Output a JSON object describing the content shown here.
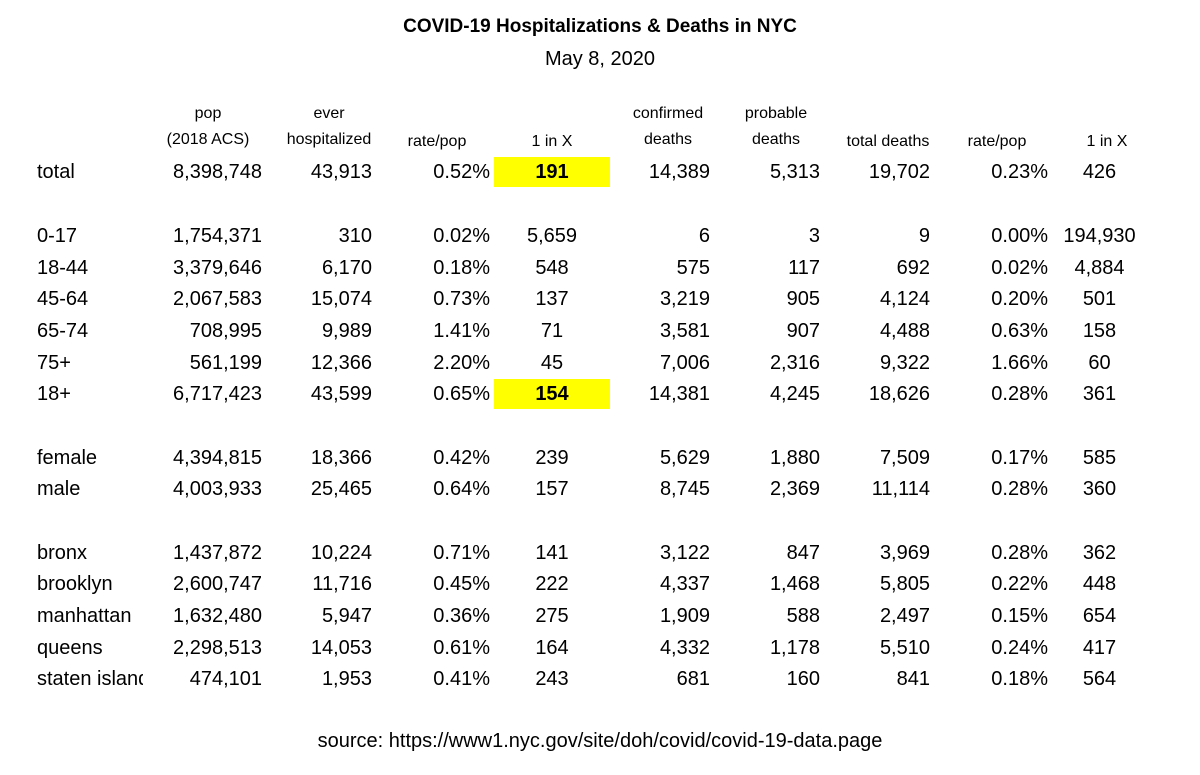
{
  "title": "COVID-19 Hospitalizations & Deaths in NYC",
  "date": "May 8, 2020",
  "headers": {
    "pop": [
      "pop",
      "(2018 ACS)"
    ],
    "hosp": [
      "ever",
      "hospitalized"
    ],
    "rate": [
      "rate/pop"
    ],
    "one_in": [
      "1 in X"
    ],
    "confirmed": [
      "confirmed",
      "deaths"
    ],
    "probable": [
      "probable",
      "deaths"
    ],
    "total_deaths": [
      "total deaths"
    ],
    "rate2": [
      "rate/pop"
    ],
    "one_in2": [
      "1 in X"
    ]
  },
  "highlight_color": "#ffff00",
  "rows": [
    {
      "label": "total",
      "pop": "8,398,748",
      "hosp": "43,913",
      "rate": "0.52%",
      "one_in": "191",
      "confirmed": "14,389",
      "probable": "5,313",
      "total_deaths": "19,702",
      "rate2": "0.23%",
      "one_in2": "426"
    },
    {
      "label": "0-17",
      "pop": "1,754,371",
      "hosp": "310",
      "rate": "0.02%",
      "one_in": "5,659",
      "confirmed": "6",
      "probable": "3",
      "total_deaths": "9",
      "rate2": "0.00%",
      "one_in2": "194,930"
    },
    {
      "label": "18-44",
      "pop": "3,379,646",
      "hosp": "6,170",
      "rate": "0.18%",
      "one_in": "548",
      "confirmed": "575",
      "probable": "117",
      "total_deaths": "692",
      "rate2": "0.02%",
      "one_in2": "4,884"
    },
    {
      "label": "45-64",
      "pop": "2,067,583",
      "hosp": "15,074",
      "rate": "0.73%",
      "one_in": "137",
      "confirmed": "3,219",
      "probable": "905",
      "total_deaths": "4,124",
      "rate2": "0.20%",
      "one_in2": "501"
    },
    {
      "label": "65-74",
      "pop": "708,995",
      "hosp": "9,989",
      "rate": "1.41%",
      "one_in": "71",
      "confirmed": "3,581",
      "probable": "907",
      "total_deaths": "4,488",
      "rate2": "0.63%",
      "one_in2": "158"
    },
    {
      "label": "75+",
      "pop": "561,199",
      "hosp": "12,366",
      "rate": "2.20%",
      "one_in": "45",
      "confirmed": "7,006",
      "probable": "2,316",
      "total_deaths": "9,322",
      "rate2": "1.66%",
      "one_in2": "60"
    },
    {
      "label": "18+",
      "pop": "6,717,423",
      "hosp": "43,599",
      "rate": "0.65%",
      "one_in": "154",
      "confirmed": "14,381",
      "probable": "4,245",
      "total_deaths": "18,626",
      "rate2": "0.28%",
      "one_in2": "361"
    },
    {
      "label": "female",
      "pop": "4,394,815",
      "hosp": "18,366",
      "rate": "0.42%",
      "one_in": "239",
      "confirmed": "5,629",
      "probable": "1,880",
      "total_deaths": "7,509",
      "rate2": "0.17%",
      "one_in2": "585"
    },
    {
      "label": "male",
      "pop": "4,003,933",
      "hosp": "25,465",
      "rate": "0.64%",
      "one_in": "157",
      "confirmed": "8,745",
      "probable": "2,369",
      "total_deaths": "11,114",
      "rate2": "0.28%",
      "one_in2": "360"
    },
    {
      "label": "bronx",
      "pop": "1,437,872",
      "hosp": "10,224",
      "rate": "0.71%",
      "one_in": "141",
      "confirmed": "3,122",
      "probable": "847",
      "total_deaths": "3,969",
      "rate2": "0.28%",
      "one_in2": "362"
    },
    {
      "label": "brooklyn",
      "pop": "2,600,747",
      "hosp": "11,716",
      "rate": "0.45%",
      "one_in": "222",
      "confirmed": "4,337",
      "probable": "1,468",
      "total_deaths": "5,805",
      "rate2": "0.22%",
      "one_in2": "448"
    },
    {
      "label": "manhattan",
      "pop": "1,632,480",
      "hosp": "5,947",
      "rate": "0.36%",
      "one_in": "275",
      "confirmed": "1,909",
      "probable": "588",
      "total_deaths": "2,497",
      "rate2": "0.15%",
      "one_in2": "654"
    },
    {
      "label": "queens",
      "pop": "2,298,513",
      "hosp": "14,053",
      "rate": "0.61%",
      "one_in": "164",
      "confirmed": "4,332",
      "probable": "1,178",
      "total_deaths": "5,510",
      "rate2": "0.24%",
      "one_in2": "417"
    },
    {
      "label": "staten island",
      "pop": "474,101",
      "hosp": "1,953",
      "rate": "0.41%",
      "one_in": "243",
      "confirmed": "681",
      "probable": "160",
      "total_deaths": "841",
      "rate2": "0.18%",
      "one_in2": "564"
    }
  ],
  "source": "source: https://www1.nyc.gov/site/doh/covid/covid-19-data.page"
}
